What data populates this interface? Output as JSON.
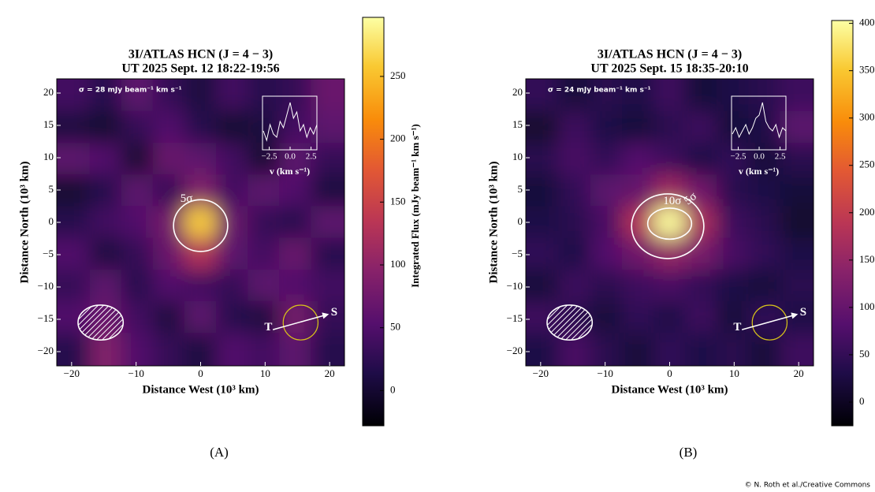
{
  "chart_data": [
    {
      "type": "heatmap",
      "panel_label": "(A)",
      "title": "3I/ATLAS HCN (J = 4 − 3)",
      "subtitle": "UT 2025 Sept. 12 18:22-19:56",
      "note": "σ = 28 mJy beam⁻¹ km s⁻¹",
      "xlabel": "Distance West (10³ km)",
      "ylabel": "Distance North (10³ km)",
      "x": [
        -19.6,
        -14.7,
        -9.8,
        -4.9,
        0,
        4.9,
        9.8,
        14.7,
        19.6
      ],
      "y": [
        19.6,
        14.7,
        9.8,
        4.9,
        0,
        -4.9,
        -9.8,
        -14.7,
        -19.6
      ],
      "z": [
        [
          40,
          20,
          60,
          30,
          10,
          40,
          20,
          30,
          70
        ],
        [
          10,
          0,
          30,
          50,
          20,
          0,
          10,
          40,
          60
        ],
        [
          60,
          50,
          0,
          70,
          60,
          40,
          0,
          60,
          30
        ],
        [
          0,
          20,
          60,
          30,
          90,
          40,
          60,
          50,
          10
        ],
        [
          20,
          40,
          50,
          80,
          260,
          70,
          30,
          20,
          60
        ],
        [
          50,
          10,
          30,
          70,
          130,
          60,
          40,
          70,
          20
        ],
        [
          30,
          60,
          20,
          50,
          40,
          30,
          60,
          50,
          40
        ],
        [
          50,
          70,
          40,
          10,
          60,
          20,
          10,
          80,
          30
        ],
        [
          20,
          90,
          50,
          30,
          10,
          50,
          40,
          60,
          20
        ]
      ],
      "xlim": [
        -22.3,
        22.3
      ],
      "ylim": [
        -22.2,
        22.2
      ],
      "xticks": [
        {
          "value": -20,
          "label": "−20"
        },
        {
          "value": -10,
          "label": "−10"
        },
        0,
        10,
        20
      ],
      "yticks": [
        {
          "value": -20,
          "label": "−20"
        },
        {
          "value": -15,
          "label": "−15"
        },
        {
          "value": -10,
          "label": "−10"
        },
        {
          "value": -5,
          "label": "−5"
        },
        0,
        5,
        10,
        15,
        20
      ],
      "cmap": "inferno",
      "clim": [
        -28,
        297
      ],
      "cticks": [
        0,
        50,
        100,
        150,
        200,
        250
      ],
      "colorbar_label": "Integrated Flux (mJy beam⁻¹ km s⁻¹)",
      "contour_labels": [
        "5σ"
      ],
      "direction_labels": [
        "T",
        "S"
      ],
      "inset": {
        "type": "line",
        "x": [
          -3.2,
          -2.8,
          -2.4,
          -2.0,
          -1.6,
          -1.2,
          -0.8,
          -0.4,
          0.0,
          0.4,
          0.8,
          1.2,
          1.6,
          2.0,
          2.4,
          2.8,
          3.2
        ],
        "values": [
          0.1,
          -0.2,
          0.3,
          0.0,
          -0.1,
          0.4,
          0.2,
          0.6,
          1.0,
          0.5,
          0.7,
          0.1,
          0.3,
          -0.1,
          0.2,
          0.0,
          0.3
        ],
        "xlim": [
          -3.3,
          3.2
        ],
        "ylim": [
          -0.5,
          1.2
        ],
        "xticks": [
          {
            "value": -2.5,
            "label": "−2.5"
          },
          {
            "value": 0,
            "label": "0.0"
          },
          {
            "value": 2.5,
            "label": "2.5"
          }
        ],
        "xlabel": "v (km s⁻¹)"
      }
    },
    {
      "type": "heatmap",
      "panel_label": "(B)",
      "title": "3I/ATLAS HCN (J = 4 − 3)",
      "subtitle": "UT 2025 Sept. 15 18:35-20:10",
      "note": "σ = 24 mJy beam⁻¹ km s⁻¹",
      "xlabel": "Distance West (10³ km)",
      "ylabel": "Distance North (10³ km)",
      "x": [
        -19.6,
        -14.7,
        -9.8,
        -4.9,
        0,
        4.9,
        9.8,
        14.7,
        19.6
      ],
      "y": [
        19.6,
        14.7,
        9.8,
        4.9,
        0,
        -4.9,
        -9.8,
        -14.7,
        -19.6
      ],
      "z": [
        [
          50,
          20,
          40,
          30,
          60,
          20,
          30,
          40,
          60
        ],
        [
          10,
          60,
          30,
          20,
          40,
          60,
          20,
          30,
          90
        ],
        [
          40,
          70,
          50,
          80,
          60,
          30,
          50,
          20,
          40
        ],
        [
          20,
          50,
          90,
          100,
          160,
          110,
          40,
          30,
          20
        ],
        [
          30,
          40,
          70,
          180,
          400,
          170,
          60,
          40,
          10
        ],
        [
          50,
          30,
          80,
          110,
          150,
          120,
          70,
          50,
          30
        ],
        [
          20,
          60,
          40,
          60,
          70,
          50,
          30,
          20,
          40
        ],
        [
          60,
          40,
          20,
          50,
          30,
          60,
          20,
          50,
          30
        ],
        [
          30,
          70,
          40,
          20,
          50,
          30,
          40,
          20,
          60
        ]
      ],
      "xlim": [
        -22.3,
        22.3
      ],
      "ylim": [
        -22.2,
        22.2
      ],
      "xticks": [
        {
          "value": -20,
          "label": "−20"
        },
        {
          "value": -10,
          "label": "−10"
        },
        0,
        10,
        20
      ],
      "yticks": [
        {
          "value": -20,
          "label": "−20"
        },
        {
          "value": -15,
          "label": "−15"
        },
        {
          "value": -10,
          "label": "−10"
        },
        {
          "value": -5,
          "label": "−5"
        },
        0,
        5,
        10,
        15,
        20
      ],
      "cmap": "inferno",
      "clim": [
        -25,
        403
      ],
      "cticks": [
        0,
        50,
        100,
        150,
        200,
        250,
        300,
        350,
        400
      ],
      "contour_labels": [
        "10σ",
        "5σ"
      ],
      "direction_labels": [
        "T",
        "S"
      ],
      "inset": {
        "type": "line",
        "x": [
          -3.2,
          -2.8,
          -2.4,
          -2.0,
          -1.6,
          -1.2,
          -0.8,
          -0.4,
          0.0,
          0.4,
          0.8,
          1.2,
          1.6,
          2.0,
          2.4,
          2.8,
          3.2
        ],
        "values": [
          0.0,
          0.2,
          -0.1,
          0.1,
          0.3,
          0.0,
          0.2,
          0.5,
          0.6,
          1.0,
          0.4,
          0.2,
          0.1,
          0.3,
          -0.1,
          0.2,
          0.1
        ],
        "xlim": [
          -3.3,
          3.2
        ],
        "ylim": [
          -0.5,
          1.2
        ],
        "xticks": [
          {
            "value": -2.5,
            "label": "−2.5"
          },
          {
            "value": 0,
            "label": "0.0"
          },
          {
            "value": 2.5,
            "label": "2.5"
          }
        ],
        "xlabel": "v (km s⁻¹)"
      }
    }
  ],
  "credit": "© N. Roth et al./Creative Commons"
}
